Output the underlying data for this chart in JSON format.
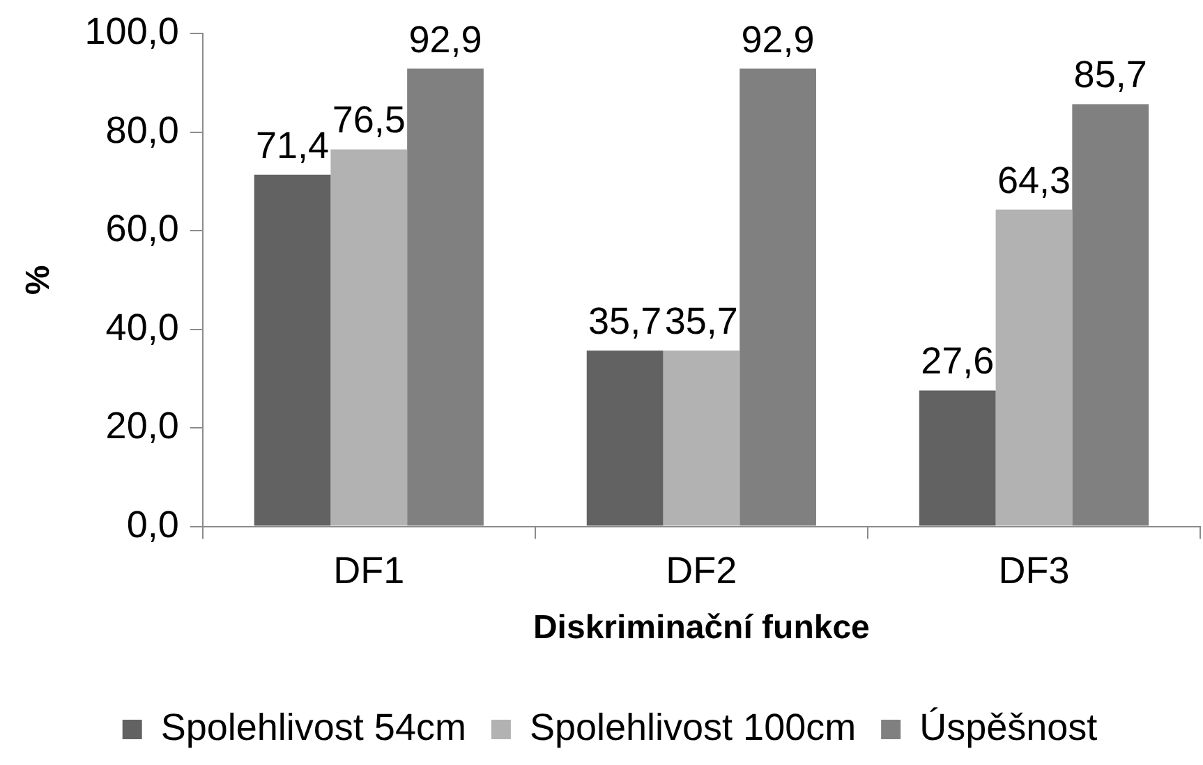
{
  "chart_data": {
    "type": "bar",
    "xlabel": "Diskriminační funkce",
    "ylabel": "%",
    "categories": [
      "DF1",
      "DF2",
      "DF3"
    ],
    "series": [
      {
        "name": "Spolehlivost 54cm",
        "color": "#626262",
        "values": [
          71.4,
          35.7,
          27.6
        ],
        "value_labels": [
          "71,4",
          "35,7",
          "27,6"
        ]
      },
      {
        "name": "Spolehlivost 100cm",
        "color": "#b2b2b2",
        "values": [
          76.5,
          35.7,
          64.3
        ],
        "value_labels": [
          "76,5",
          "35,7",
          "64,3"
        ]
      },
      {
        "name": "Úspěšnost",
        "color": "#808080",
        "values": [
          92.9,
          92.9,
          85.7
        ],
        "value_labels": [
          "92,9",
          "92,9",
          "85,7"
        ]
      }
    ],
    "ylim": [
      0,
      100
    ],
    "yticks": [
      {
        "value": 0,
        "label": "0,0"
      },
      {
        "value": 20,
        "label": "20,0"
      },
      {
        "value": 40,
        "label": "40,0"
      },
      {
        "value": 60,
        "label": "60,0"
      },
      {
        "value": 80,
        "label": "80,0"
      },
      {
        "value": 100,
        "label": "100,0"
      }
    ],
    "legend": "bottom"
  }
}
